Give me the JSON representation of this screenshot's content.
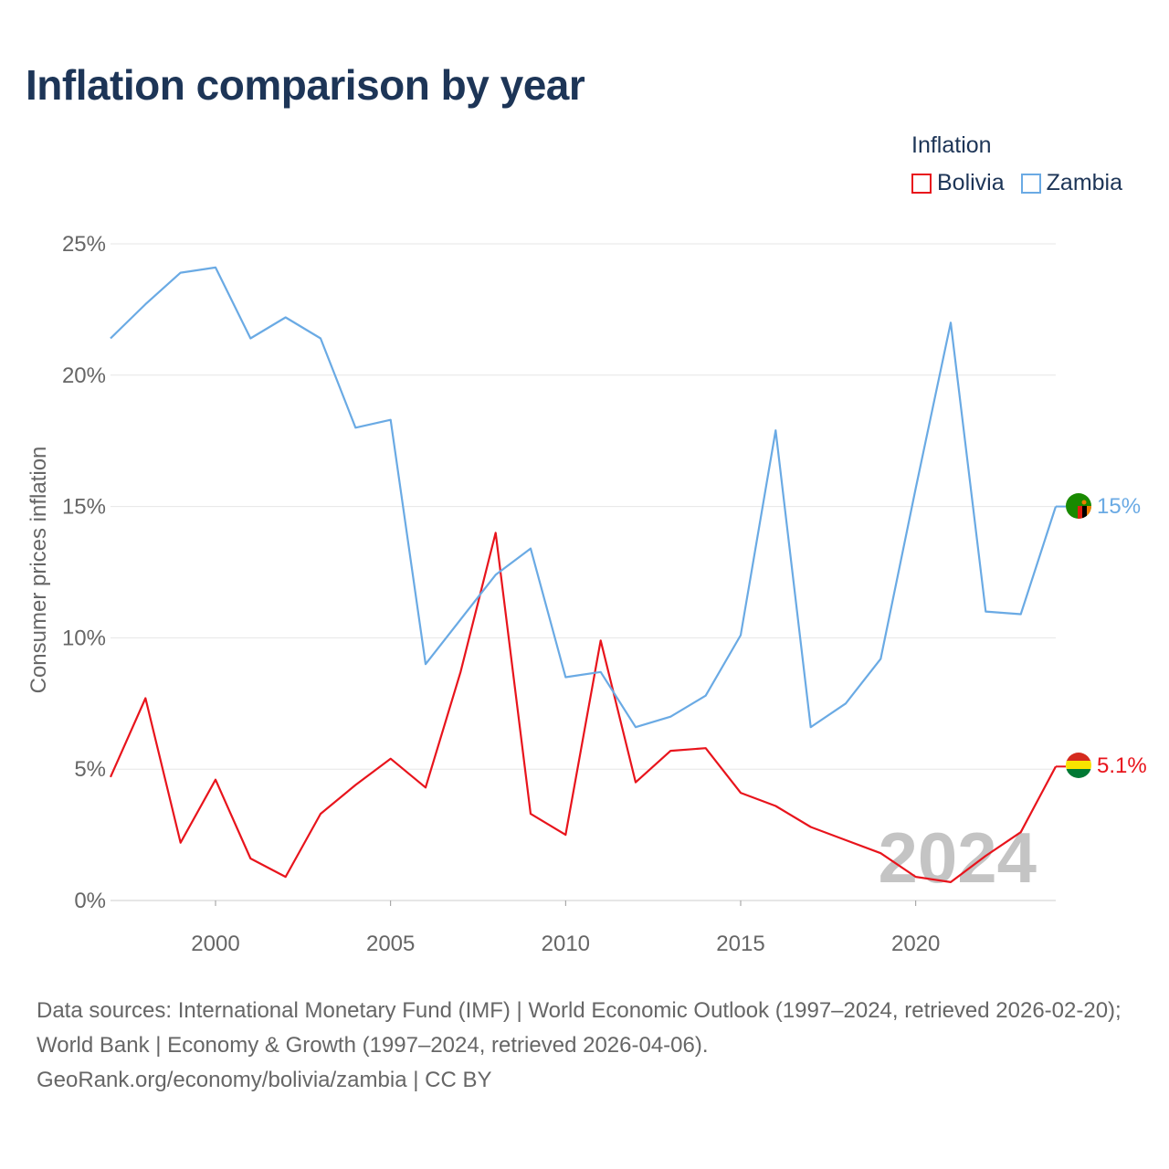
{
  "title": "Inflation comparison by year",
  "legend": {
    "title": "Inflation",
    "items": [
      {
        "name": "Bolivia",
        "color": "#e8141c"
      },
      {
        "name": "Zambia",
        "color": "#6aaae4"
      }
    ]
  },
  "footer": {
    "line1": "Data sources: International Monetary Fund (IMF) | World Economic Outlook (1997–2024, retrieved 2026-02-20); World Bank | Economy & Growth (1997–2024, retrieved 2026-04-06).",
    "line2": "GeoRank.org/economy/bolivia/zambia | CC BY"
  },
  "chart_data": {
    "type": "line",
    "title": "Inflation comparison by year",
    "ylabel": "Consumer prices inflation",
    "xlabel": "",
    "xlim": [
      1997,
      2024
    ],
    "ylim": [
      0,
      25
    ],
    "x_ticks": [
      2000,
      2005,
      2010,
      2015,
      2020
    ],
    "y_ticks": [
      0,
      5,
      10,
      15,
      20,
      25
    ],
    "y_tick_labels": [
      "0%",
      "5%",
      "10%",
      "15%",
      "20%",
      "25%"
    ],
    "watermark_year": "2024",
    "grid": true,
    "legend_position": "top-right",
    "x": [
      1997,
      1998,
      1999,
      2000,
      2001,
      2002,
      2003,
      2004,
      2005,
      2006,
      2007,
      2008,
      2009,
      2010,
      2011,
      2012,
      2013,
      2014,
      2015,
      2016,
      2017,
      2018,
      2019,
      2020,
      2021,
      2022,
      2023,
      2024
    ],
    "series": [
      {
        "name": "Bolivia",
        "color": "#e8141c",
        "end_label": "5.1%",
        "values": [
          4.7,
          7.7,
          2.2,
          4.6,
          1.6,
          0.9,
          3.3,
          4.4,
          5.4,
          4.3,
          8.7,
          14.0,
          3.3,
          2.5,
          9.9,
          4.5,
          5.7,
          5.8,
          4.1,
          3.6,
          2.8,
          2.3,
          1.8,
          0.9,
          0.7,
          1.7,
          2.6,
          5.1
        ]
      },
      {
        "name": "Zambia",
        "color": "#6aaae4",
        "end_label": "15%",
        "values": [
          21.4,
          22.7,
          23.9,
          24.1,
          21.4,
          22.2,
          21.4,
          18.0,
          18.3,
          9.0,
          10.7,
          12.4,
          13.4,
          8.5,
          8.7,
          6.6,
          7.0,
          7.8,
          10.1,
          17.9,
          6.6,
          7.5,
          9.2,
          15.7,
          22.0,
          11.0,
          10.9,
          15.0
        ]
      }
    ]
  }
}
